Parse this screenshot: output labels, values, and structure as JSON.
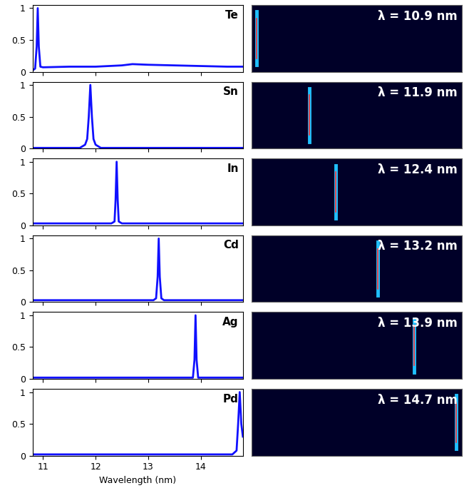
{
  "chart_data": [
    {
      "type": "line",
      "title": "Te",
      "color": "#1010ff",
      "x": [
        10.8,
        10.85,
        10.88,
        10.9,
        10.92,
        10.95,
        11.0,
        11.5,
        12.0,
        12.5,
        12.7,
        13.0,
        13.5,
        14.0,
        14.5,
        14.8
      ],
      "values": [
        0.02,
        0.05,
        0.4,
        1.0,
        0.4,
        0.08,
        0.07,
        0.08,
        0.08,
        0.1,
        0.12,
        0.11,
        0.1,
        0.09,
        0.08,
        0.08
      ],
      "xlim": [
        10.8,
        14.8
      ],
      "ylim": [
        0,
        1.05
      ],
      "xticks": [
        11,
        12,
        13,
        14
      ],
      "yticks": [
        0,
        0.5,
        1
      ],
      "tick_labels": "y"
    },
    {
      "type": "image",
      "title": "λ = 10.9 nm",
      "peak": 10.9,
      "xlim": [
        10.8,
        14.8
      ],
      "tick_labels": false
    },
    {
      "type": "line",
      "title": "Sn",
      "color": "#1010ff",
      "x": [
        10.8,
        11.7,
        11.8,
        11.84,
        11.87,
        11.9,
        11.93,
        11.96,
        12.0,
        12.1,
        14.8
      ],
      "values": [
        0.01,
        0.01,
        0.06,
        0.15,
        0.5,
        1.0,
        0.5,
        0.15,
        0.06,
        0.01,
        0.01
      ],
      "xlim": [
        10.8,
        14.8
      ],
      "ylim": [
        0,
        1.05
      ],
      "xticks": [
        11,
        12,
        13,
        14
      ],
      "yticks": [
        0,
        0.5,
        1
      ],
      "tick_labels": "y"
    },
    {
      "type": "image",
      "title": "λ = 11.9 nm",
      "peak": 11.9,
      "xlim": [
        10.8,
        14.8
      ],
      "tick_labels": false
    },
    {
      "type": "line",
      "title": "In",
      "color": "#1010ff",
      "x": [
        10.8,
        12.3,
        12.36,
        12.38,
        12.4,
        12.42,
        12.44,
        12.5,
        14.8
      ],
      "values": [
        0.03,
        0.03,
        0.06,
        0.4,
        1.0,
        0.4,
        0.06,
        0.03,
        0.03
      ],
      "xlim": [
        10.8,
        14.8
      ],
      "ylim": [
        0,
        1.05
      ],
      "xticks": [
        11,
        12,
        13,
        14
      ],
      "yticks": [
        0,
        0.5,
        1
      ],
      "tick_labels": "y"
    },
    {
      "type": "image",
      "title": "λ = 12.4 nm",
      "peak": 12.4,
      "xlim": [
        10.8,
        14.8
      ],
      "tick_labels": false
    },
    {
      "type": "line",
      "title": "Cd",
      "color": "#1010ff",
      "x": [
        10.8,
        13.1,
        13.15,
        13.18,
        13.2,
        13.22,
        13.25,
        13.3,
        14.8
      ],
      "values": [
        0.03,
        0.03,
        0.06,
        0.4,
        1.0,
        0.4,
        0.06,
        0.03,
        0.03
      ],
      "xlim": [
        10.8,
        14.8
      ],
      "ylim": [
        0,
        1.05
      ],
      "xticks": [
        11,
        12,
        13,
        14
      ],
      "yticks": [
        0,
        0.5,
        1
      ],
      "tick_labels": "y"
    },
    {
      "type": "image",
      "title": "λ = 13.2 nm",
      "peak": 13.2,
      "xlim": [
        10.8,
        14.8
      ],
      "tick_labels": false
    },
    {
      "type": "line",
      "title": "Ag",
      "color": "#1010ff",
      "x": [
        10.8,
        13.85,
        13.88,
        13.9,
        13.92,
        13.95,
        14.8
      ],
      "values": [
        0.02,
        0.02,
        0.3,
        1.0,
        0.3,
        0.02,
        0.02
      ],
      "xlim": [
        10.8,
        14.8
      ],
      "ylim": [
        0,
        1.05
      ],
      "xticks": [
        11,
        12,
        13,
        14
      ],
      "yticks": [
        0,
        0.5,
        1
      ],
      "tick_labels": "y"
    },
    {
      "type": "image",
      "title": "λ = 13.9 nm",
      "peak": 13.9,
      "xlim": [
        10.8,
        14.8
      ],
      "tick_labels": false
    },
    {
      "type": "line",
      "title": "Pd",
      "color": "#1010ff",
      "x": [
        10.8,
        14.6,
        14.68,
        14.71,
        14.74,
        14.77,
        14.8
      ],
      "values": [
        0.02,
        0.02,
        0.08,
        0.5,
        1.0,
        0.5,
        0.3
      ],
      "xlim": [
        10.8,
        14.8
      ],
      "ylim": [
        0,
        1.05
      ],
      "xticks": [
        11,
        12,
        13,
        14
      ],
      "yticks": [
        0,
        0.5,
        1
      ],
      "tick_labels": true,
      "x_label": "Wavelength (nm)"
    },
    {
      "type": "image",
      "title": "λ = 14.7 nm",
      "peak": 14.7,
      "xlim": [
        10.8,
        14.8
      ],
      "tick_labels": false
    }
  ]
}
